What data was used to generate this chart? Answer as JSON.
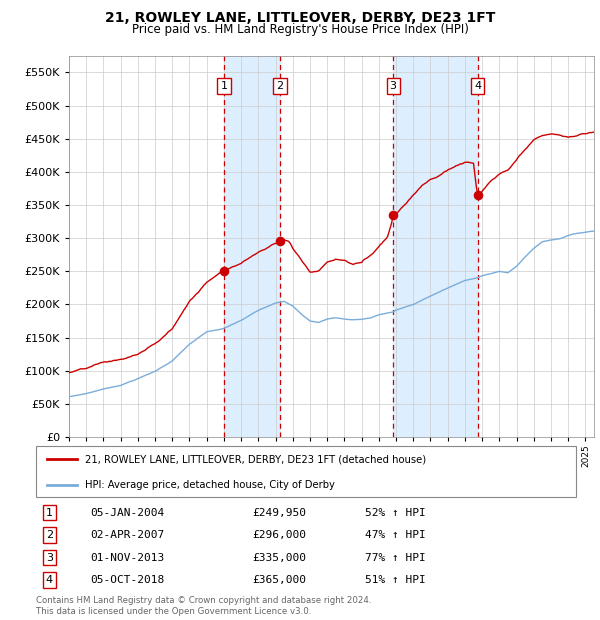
{
  "title": "21, ROWLEY LANE, LITTLEOVER, DERBY, DE23 1FT",
  "subtitle": "Price paid vs. HM Land Registry's House Price Index (HPI)",
  "footer": "Contains HM Land Registry data © Crown copyright and database right 2024.\nThis data is licensed under the Open Government Licence v3.0.",
  "legend_line1": "21, ROWLEY LANE, LITTLEOVER, DERBY, DE23 1FT (detached house)",
  "legend_line2": "HPI: Average price, detached house, City of Derby",
  "purchases": [
    {
      "num": 1,
      "date": "05-JAN-2004",
      "date_x": 2004.01,
      "price": 249950,
      "pct": "52% ↑ HPI"
    },
    {
      "num": 2,
      "date": "02-APR-2007",
      "date_x": 2007.25,
      "price": 296000,
      "pct": "47% ↑ HPI"
    },
    {
      "num": 3,
      "date": "01-NOV-2013",
      "date_x": 2013.83,
      "price": 335000,
      "pct": "77% ↑ HPI"
    },
    {
      "num": 4,
      "date": "05-OCT-2018",
      "date_x": 2018.75,
      "price": 365000,
      "pct": "51% ↑ HPI"
    }
  ],
  "hpi_color": "#7aaddb",
  "price_color": "#cc0000",
  "vline_color": "#cc0000",
  "shade_color": "#ddeeff",
  "ylim": [
    0,
    575000
  ],
  "yticks": [
    0,
    50000,
    100000,
    150000,
    200000,
    250000,
    300000,
    350000,
    400000,
    450000,
    500000,
    550000
  ],
  "xlim_start": 1995.0,
  "xlim_end": 2025.5,
  "xticks": [
    1995,
    1996,
    1997,
    1998,
    1999,
    2000,
    2001,
    2002,
    2003,
    2004,
    2005,
    2006,
    2007,
    2008,
    2009,
    2010,
    2011,
    2012,
    2013,
    2014,
    2015,
    2016,
    2017,
    2018,
    2019,
    2020,
    2021,
    2022,
    2023,
    2024,
    2025
  ]
}
